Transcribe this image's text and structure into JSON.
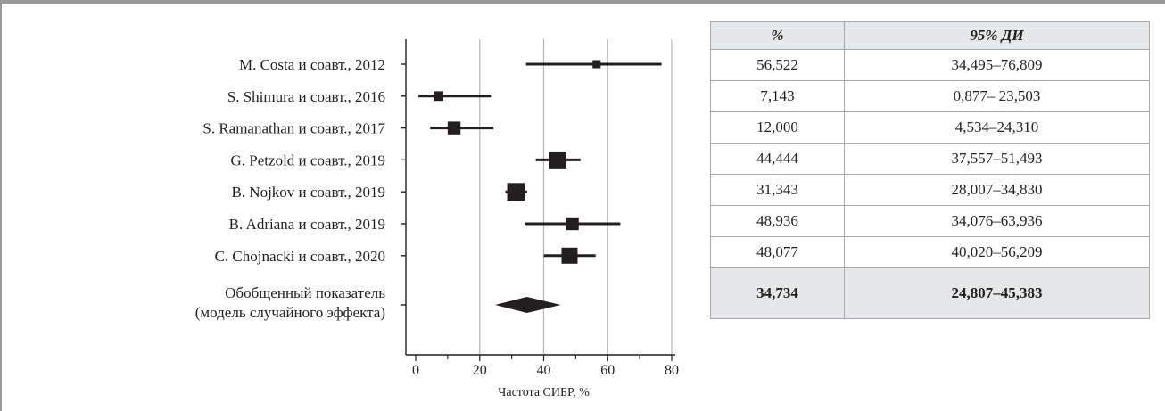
{
  "chart_data": {
    "type": "forest",
    "xlabel": "Частота СИБР, %",
    "xlim": [
      0,
      80
    ],
    "xticks": [
      0,
      20,
      40,
      60,
      80
    ],
    "grid": "vertical",
    "studies": [
      {
        "label": "M. Costa и соавт., 2012",
        "estimate": 56.522,
        "ci_low": 34.495,
        "ci_high": 76.809,
        "weight": 1
      },
      {
        "label": "S. Shimura и соавт., 2016",
        "estimate": 7.143,
        "ci_low": 0.877,
        "ci_high": 23.503,
        "weight": 1.2
      },
      {
        "label": "S. Ramanathan и соавт., 2017",
        "estimate": 12.0,
        "ci_low": 4.534,
        "ci_high": 24.31,
        "weight": 1.6
      },
      {
        "label": "G. Petzold и соавт., 2019",
        "estimate": 44.444,
        "ci_low": 37.557,
        "ci_high": 51.493,
        "weight": 2.1
      },
      {
        "label": "B. Nojkov и соавт., 2019",
        "estimate": 31.343,
        "ci_low": 28.007,
        "ci_high": 34.83,
        "weight": 2.2
      },
      {
        "label": "B. Adriana и соавт., 2019",
        "estimate": 48.936,
        "ci_low": 34.076,
        "ci_high": 63.936,
        "weight": 1.6
      },
      {
        "label": "C. Chojnacki и соавт., 2020",
        "estimate": 48.077,
        "ci_low": 40.02,
        "ci_high": 56.209,
        "weight": 2.0
      }
    ],
    "summary": {
      "label_line1": "Обобщенный показатель",
      "label_line2": "(модель случайного эффекта)",
      "estimate": 34.734,
      "ci_low": 24.807,
      "ci_high": 45.383
    }
  },
  "table": {
    "headers": [
      "%",
      "95% ДИ"
    ],
    "rows": [
      [
        "56,522",
        "34,495–76,809"
      ],
      [
        "7,143",
        "0,877– 23,503"
      ],
      [
        "12,000",
        "4,534–24,310"
      ],
      [
        "44,444",
        "37,557–51,493"
      ],
      [
        "31,343",
        "28,007–34,830"
      ],
      [
        "48,936",
        "34,076–63,936"
      ],
      [
        "48,077",
        "40,020–56,209"
      ]
    ],
    "summary_row": [
      "34,734",
      "24,807–45,383"
    ]
  }
}
